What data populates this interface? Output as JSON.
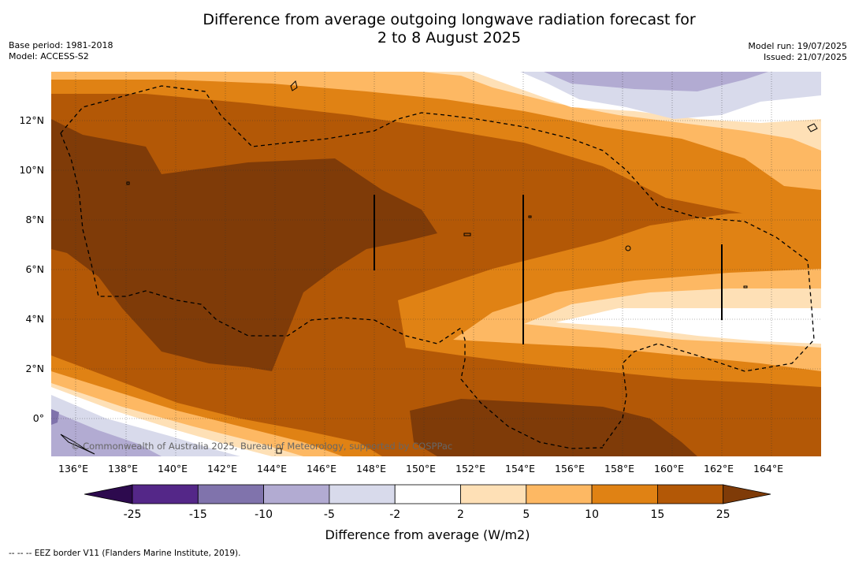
{
  "title_line1": "Difference from average outgoing longwave radiation forecast for",
  "title_line2": "2 to 8 August 2025",
  "meta_left": {
    "base_period": "Base period: 1981-2018",
    "model": "Model: ACCESS-S2"
  },
  "meta_right": {
    "model_run": "Model run: 19/07/2025",
    "issued": "Issued: 21/07/2025"
  },
  "lon_labels": [
    "136°E",
    "138°E",
    "140°E",
    "142°E",
    "144°E",
    "146°E",
    "148°E",
    "150°E",
    "152°E",
    "154°E",
    "156°E",
    "158°E",
    "160°E",
    "162°E",
    "164°E"
  ],
  "lat_labels": [
    "12°N",
    "10°N",
    "8°N",
    "6°N",
    "4°N",
    "2°N",
    "0°"
  ],
  "copyright": "© Commonwealth of Australia 2025, Bureau of Meteorology, supported by COSPPac",
  "colorbar": {
    "title": "Difference from average (W/m2)",
    "tick_labels": [
      "-25",
      "-15",
      "-10",
      "-5",
      "-2",
      "2",
      "5",
      "10",
      "15",
      "25"
    ],
    "colors": {
      "below_min": "#2d0a4e",
      "c1": "#542788",
      "c2": "#8073ac",
      "c3": "#b2abd2",
      "c4": "#d8daeb",
      "c5": "#ffffff",
      "c6": "#fee0b6",
      "c7": "#fdb863",
      "c8": "#e08214",
      "c9": "#b35806",
      "above_max": "#7f3b08"
    }
  },
  "footer": "--  --  -- EEZ border V11 (Flanders Marine Institute, 2019)."
}
